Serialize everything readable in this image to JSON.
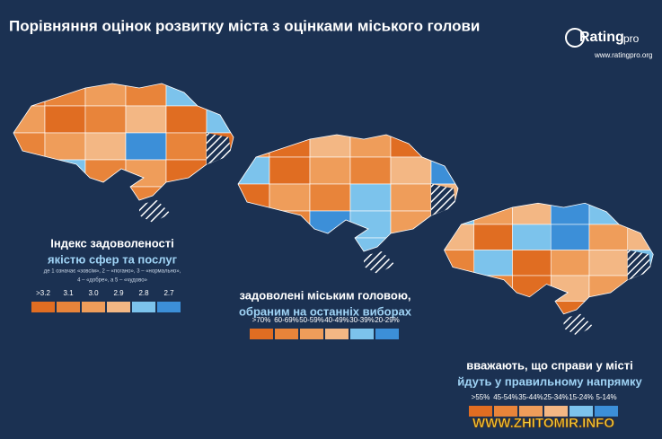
{
  "header": {
    "title": "Порівняння оцінок розвитку міста з оцінками міського голови",
    "logo": "Rating",
    "logo_suffix": "pro",
    "url": "www.ratingpro.org"
  },
  "panels": [
    {
      "title_lines": [
        "Індекс задоволеності",
        "якістю сфер та послуг"
      ],
      "note_lines": [
        "де 1 означає «зовсім», 2 – «погано», 3 – «нормально»,",
        "4 – «добре», а 5 – «чудово»"
      ],
      "legend": [
        {
          "label": ">3.2",
          "color": "#e06d22"
        },
        {
          "label": "3.1",
          "color": "#e8843a"
        },
        {
          "label": "3.0",
          "color": "#ef9d5a"
        },
        {
          "label": "2.9",
          "color": "#f3b784"
        },
        {
          "label": "2.8",
          "color": "#7cc3ec"
        },
        {
          "label": "2.7",
          "color": "#3c8fd8"
        }
      ]
    },
    {
      "title_lines": [
        "задоволені міським головою,",
        "обраним на останніх виборах"
      ],
      "note_lines": [],
      "legend": [
        {
          "label": ">70%",
          "color": "#e06d22"
        },
        {
          "label": "60-69%",
          "color": "#e8843a"
        },
        {
          "label": "50-59%",
          "color": "#ef9d5a"
        },
        {
          "label": "40-49%",
          "color": "#f3b784"
        },
        {
          "label": "30-39%",
          "color": "#7cc3ec"
        },
        {
          "label": "20-29%",
          "color": "#3c8fd8"
        }
      ]
    },
    {
      "title_lines": [
        "вважають, що справи у місті",
        "йдуть у правильному напрямку"
      ],
      "note_lines": [],
      "legend": [
        {
          "label": ">55%",
          "color": "#e06d22"
        },
        {
          "label": "45-54%",
          "color": "#e8843a"
        },
        {
          "label": "35-44%",
          "color": "#ef9d5a"
        },
        {
          "label": "25-34%",
          "color": "#f3b784"
        },
        {
          "label": "15-24%",
          "color": "#7cc3ec"
        },
        {
          "label": "5-14%",
          "color": "#3c8fd8"
        }
      ]
    }
  ],
  "watermark": "WWW.ZHITOMIR.INFO"
}
